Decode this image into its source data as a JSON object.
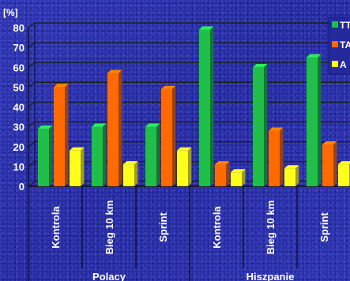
{
  "chart_data": {
    "type": "bar",
    "title": "",
    "ylabel": "[%]",
    "ylim": [
      0,
      80
    ],
    "yticks": [
      0,
      10,
      20,
      30,
      40,
      50,
      60,
      70,
      80
    ],
    "categories": [
      "Kontrola",
      "Bieg 10 km",
      "Sprint",
      "Kontrola",
      "Bieg 10 km",
      "Sprint"
    ],
    "groups": [
      {
        "label": "Polacy",
        "categories": [
          0,
          1,
          2
        ]
      },
      {
        "label": "Hiszpanie",
        "categories": [
          3,
          4,
          5
        ]
      }
    ],
    "series": [
      {
        "name": "TT",
        "color": "#1fbf4a",
        "values": [
          29,
          30,
          30,
          79,
          60,
          65
        ]
      },
      {
        "name": "TA",
        "color": "#ff6a00",
        "values": [
          50,
          57,
          49,
          11,
          28,
          21
        ]
      },
      {
        "name": "A",
        "color": "#ffff1a",
        "values": [
          18,
          11,
          18,
          7,
          9,
          11
        ]
      }
    ],
    "legend_position": "right",
    "grid": true
  }
}
